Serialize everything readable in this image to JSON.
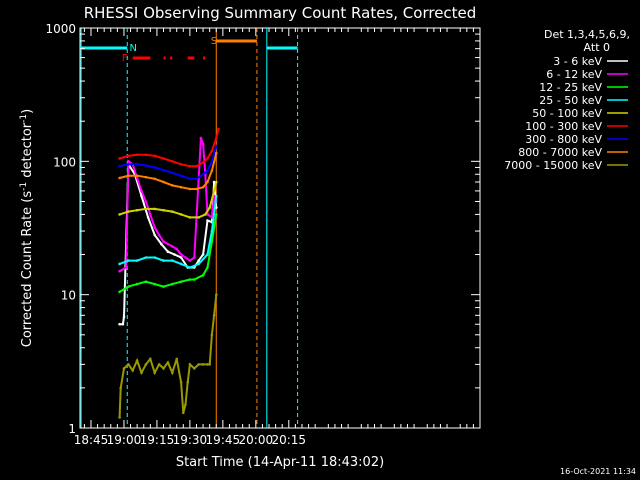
{
  "chart_data": {
    "type": "line",
    "title": "RHESSI Observing Summary Count Rates, Corrected",
    "xlabel": "Start Time (14-Apr-11 18:43:02)",
    "ylabel": "Corrected Count Rate (s-1 detector-1)",
    "ylabel_parts": [
      "Corrected Count Rate (s",
      "-1",
      " detector",
      "-1",
      ")"
    ],
    "yscale": "log",
    "ylim": [
      1,
      1000
    ],
    "xlim_minutes": [
      40,
      222
    ],
    "x_ticks": [
      {
        "minute": 45,
        "label": "18:45"
      },
      {
        "minute": 60,
        "label": "19:00"
      },
      {
        "minute": 75,
        "label": "19:15"
      },
      {
        "minute": 90,
        "label": "19:30"
      },
      {
        "minute": 105,
        "label": "19:45"
      },
      {
        "minute": 120,
        "label": "20:00"
      },
      {
        "minute": 135,
        "label": "20:15"
      }
    ],
    "y_ticks": [
      {
        "value": 1,
        "label": "1"
      },
      {
        "value": 10,
        "label": "10"
      },
      {
        "value": 100,
        "label": "100"
      },
      {
        "value": 1000,
        "label": "1000"
      }
    ],
    "legend_header": [
      "Det 1,3,4,5,6,9,",
      "Att 0"
    ],
    "legend_position": "right",
    "timestamp": "16-Oct-2021 11:34",
    "series": [
      {
        "name": "3 - 6 keV",
        "color": "#ffffff",
        "points": [
          [
            58,
            6
          ],
          [
            59.5,
            6
          ],
          [
            60,
            6.8
          ],
          [
            62,
            95
          ],
          [
            65,
            80
          ],
          [
            68,
            55
          ],
          [
            71,
            38
          ],
          [
            74,
            28
          ],
          [
            77,
            24
          ],
          [
            80,
            21
          ],
          [
            83,
            20
          ],
          [
            86,
            19
          ],
          [
            89,
            16
          ],
          [
            92,
            16
          ],
          [
            94,
            18
          ],
          [
            96,
            20
          ],
          [
            98,
            36
          ],
          [
            100,
            35
          ],
          [
            101,
            70
          ],
          [
            102,
            45
          ]
        ]
      },
      {
        "name": "6 - 12 keV",
        "color": "#ff00ff",
        "points": [
          [
            58,
            15
          ],
          [
            61,
            16
          ],
          [
            62,
            100
          ],
          [
            64,
            95
          ],
          [
            66,
            75
          ],
          [
            68,
            60
          ],
          [
            70,
            50
          ],
          [
            72,
            40
          ],
          [
            74,
            32
          ],
          [
            76,
            28
          ],
          [
            78,
            25
          ],
          [
            80,
            24
          ],
          [
            82,
            23
          ],
          [
            84,
            22
          ],
          [
            86,
            20
          ],
          [
            88,
            19
          ],
          [
            90,
            18
          ],
          [
            92,
            19
          ],
          [
            94,
            75
          ],
          [
            95,
            150
          ],
          [
            96,
            135
          ],
          [
            97,
            80
          ],
          [
            98,
            40
          ],
          [
            100,
            38
          ],
          [
            101,
            55
          ],
          [
            102,
            50
          ]
        ]
      },
      {
        "name": "12 - 25 keV",
        "color": "#00ff00",
        "points": [
          [
            58,
            10.5
          ],
          [
            62,
            11.5
          ],
          [
            66,
            12
          ],
          [
            70,
            12.5
          ],
          [
            74,
            12
          ],
          [
            78,
            11.5
          ],
          [
            82,
            12
          ],
          [
            86,
            12.5
          ],
          [
            90,
            13
          ],
          [
            92,
            13
          ],
          [
            96,
            14
          ],
          [
            98,
            16
          ],
          [
            100,
            25
          ],
          [
            102,
            40
          ]
        ]
      },
      {
        "name": "25 - 50 keV",
        "color": "#00ffff",
        "points": [
          [
            58,
            17
          ],
          [
            62,
            18
          ],
          [
            66,
            18
          ],
          [
            70,
            19
          ],
          [
            74,
            19
          ],
          [
            78,
            18
          ],
          [
            82,
            18
          ],
          [
            86,
            17
          ],
          [
            90,
            16
          ],
          [
            94,
            17
          ],
          [
            98,
            20
          ],
          [
            100,
            30
          ],
          [
            102,
            55
          ]
        ]
      },
      {
        "name": "50 - 100 keV",
        "color": "#d2d200",
        "points": [
          [
            58,
            40
          ],
          [
            62,
            42
          ],
          [
            66,
            43
          ],
          [
            70,
            44
          ],
          [
            74,
            44
          ],
          [
            78,
            43
          ],
          [
            82,
            42
          ],
          [
            86,
            40
          ],
          [
            90,
            38
          ],
          [
            94,
            38
          ],
          [
            97,
            40
          ],
          [
            99,
            45
          ],
          [
            101,
            60
          ],
          [
            102,
            70
          ]
        ]
      },
      {
        "name": "100 - 300 keV",
        "color": "#ff0000",
        "points": [
          [
            58,
            105
          ],
          [
            62,
            110
          ],
          [
            66,
            112
          ],
          [
            70,
            112
          ],
          [
            74,
            110
          ],
          [
            78,
            105
          ],
          [
            82,
            100
          ],
          [
            86,
            95
          ],
          [
            90,
            92
          ],
          [
            93,
            92
          ],
          [
            96,
            98
          ],
          [
            98,
            105
          ],
          [
            100,
            120
          ],
          [
            102,
            150
          ],
          [
            103,
            175
          ]
        ]
      },
      {
        "name": "300 - 800 keV",
        "color": "#0000ff",
        "points": [
          [
            58,
            92
          ],
          [
            62,
            95
          ],
          [
            66,
            95
          ],
          [
            70,
            93
          ],
          [
            74,
            90
          ],
          [
            78,
            86
          ],
          [
            82,
            82
          ],
          [
            86,
            78
          ],
          [
            90,
            74
          ],
          [
            93,
            74
          ],
          [
            96,
            80
          ],
          [
            98,
            85
          ],
          [
            100,
            100
          ],
          [
            102,
            130
          ]
        ]
      },
      {
        "name": "800 - 7000 keV",
        "color": "#ff8000",
        "points": [
          [
            58,
            75
          ],
          [
            62,
            78
          ],
          [
            66,
            78
          ],
          [
            70,
            76
          ],
          [
            74,
            74
          ],
          [
            78,
            70
          ],
          [
            82,
            66
          ],
          [
            86,
            64
          ],
          [
            90,
            62
          ],
          [
            93,
            62
          ],
          [
            96,
            64
          ],
          [
            98,
            70
          ],
          [
            100,
            85
          ],
          [
            102,
            115
          ]
        ]
      },
      {
        "name": "7000 - 15000 keV",
        "color": "#999900",
        "points": [
          [
            58,
            1.2
          ],
          [
            58.5,
            2
          ],
          [
            60,
            2.8
          ],
          [
            62,
            3
          ],
          [
            64,
            2.7
          ],
          [
            66,
            3.2
          ],
          [
            68,
            2.6
          ],
          [
            70,
            3
          ],
          [
            72,
            3.3
          ],
          [
            74,
            2.6
          ],
          [
            76,
            3
          ],
          [
            78,
            2.8
          ],
          [
            80,
            3.1
          ],
          [
            82,
            2.6
          ],
          [
            84,
            3.3
          ],
          [
            86,
            2.2
          ],
          [
            87,
            1.3
          ],
          [
            88,
            1.5
          ],
          [
            89,
            2.2
          ],
          [
            90,
            3
          ],
          [
            92,
            2.8
          ],
          [
            94,
            3
          ],
          [
            96,
            3
          ],
          [
            98,
            3
          ],
          [
            99,
            3
          ],
          [
            100,
            5
          ],
          [
            101,
            7
          ],
          [
            102,
            10
          ]
        ]
      }
    ],
    "flags": {
      "saa_label": "S",
      "night_label": "N",
      "flare_label": "F"
    }
  }
}
